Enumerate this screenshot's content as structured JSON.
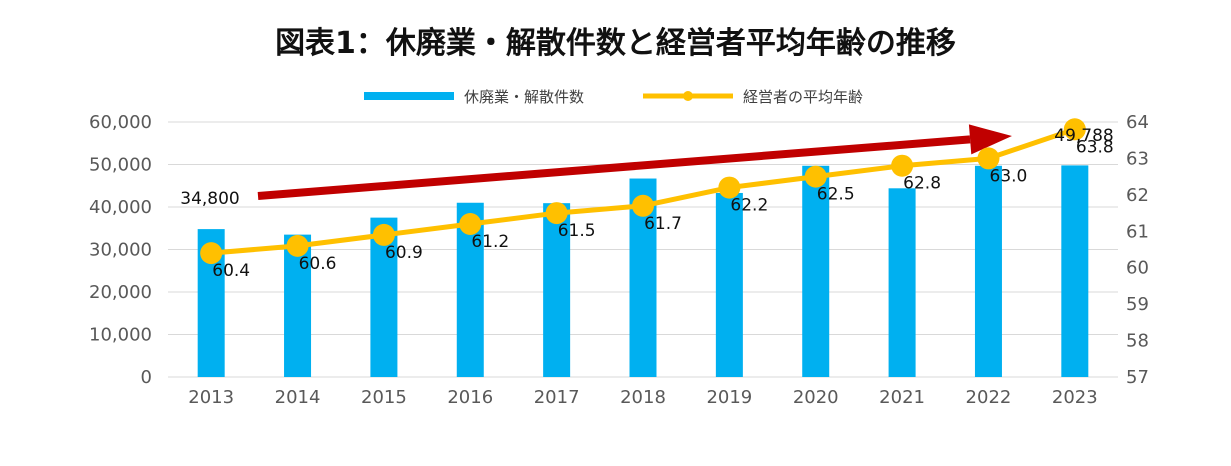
{
  "chart_data": {
    "type": "bar",
    "title": "図表1：休廃業・解散件数と経営者平均年齢の推移",
    "categories": [
      "2013",
      "2014",
      "2015",
      "2016",
      "2017",
      "2018",
      "2019",
      "2020",
      "2021",
      "2022",
      "2023"
    ],
    "series": [
      {
        "name": "休廃業・解散件数",
        "type": "bar",
        "axis": "left",
        "color": "#00B0F0",
        "values": [
          34800,
          33500,
          37500,
          41000,
          40900,
          46700,
          43300,
          49700,
          44400,
          49700,
          49788
        ]
      },
      {
        "name": "経営者の平均年齢",
        "type": "line",
        "axis": "right",
        "color": "#FFC000",
        "values": [
          60.4,
          60.6,
          60.9,
          61.2,
          61.5,
          61.7,
          62.2,
          62.5,
          62.8,
          63.0,
          63.8
        ],
        "labels": [
          "60.4",
          "60.6",
          "60.9",
          "61.2",
          "61.5",
          "61.7",
          "62.2",
          "62.5",
          "62.8",
          "63.0",
          "63.8"
        ]
      }
    ],
    "left_axis": {
      "min": 0,
      "max": 60000,
      "ticks": [
        "0",
        "10,000",
        "20,000",
        "30,000",
        "40,000",
        "50,000",
        "60,000"
      ]
    },
    "right_axis": {
      "min": 57,
      "max": 64,
      "ticks": [
        "57",
        "58",
        "59",
        "60",
        "61",
        "62",
        "63",
        "64"
      ]
    },
    "bar_annotations": {
      "first": "34,800",
      "last": "49,788"
    },
    "trend_arrow_color": "#C00000",
    "gridlines": true,
    "legend_position": "top"
  }
}
